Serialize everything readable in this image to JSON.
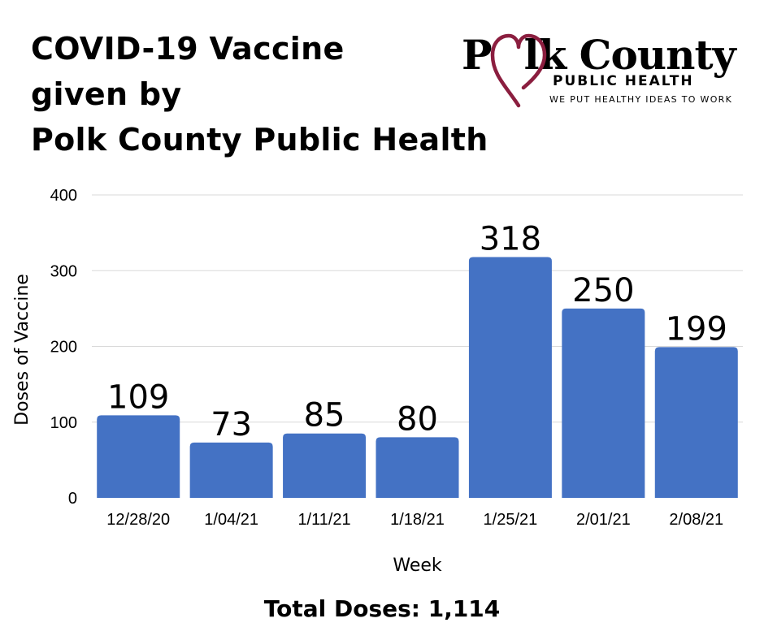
{
  "title_lines": [
    "COVID-19 Vaccine",
    "given by",
    "Polk County Public Health"
  ],
  "logo": {
    "brand_left": "P",
    "brand_right": "lk County",
    "subtitle": "PUBLIC HEALTH",
    "tagline": "WE PUT HEALTHY IDEAS TO WORK",
    "heart_color": "#8b1e3f"
  },
  "chart_data": {
    "type": "bar",
    "categories": [
      "12/28/20",
      "1/04/21",
      "1/11/21",
      "1/18/21",
      "1/25/21",
      "2/01/21",
      "2/08/21"
    ],
    "values": [
      109,
      73,
      85,
      80,
      318,
      250,
      199
    ],
    "data_labels": [
      "109",
      "73",
      "85",
      "80",
      "318",
      "250",
      "199"
    ],
    "xlabel": "Week",
    "ylabel": "Doses of Vaccine",
    "ylim": [
      0,
      400
    ],
    "yticks": [
      0,
      100,
      200,
      300,
      400
    ],
    "grid": true,
    "bar_color": "#4472c4",
    "grid_color": "#d9d9d9"
  },
  "footer": {
    "total_text": "Total Doses: 1,114"
  }
}
